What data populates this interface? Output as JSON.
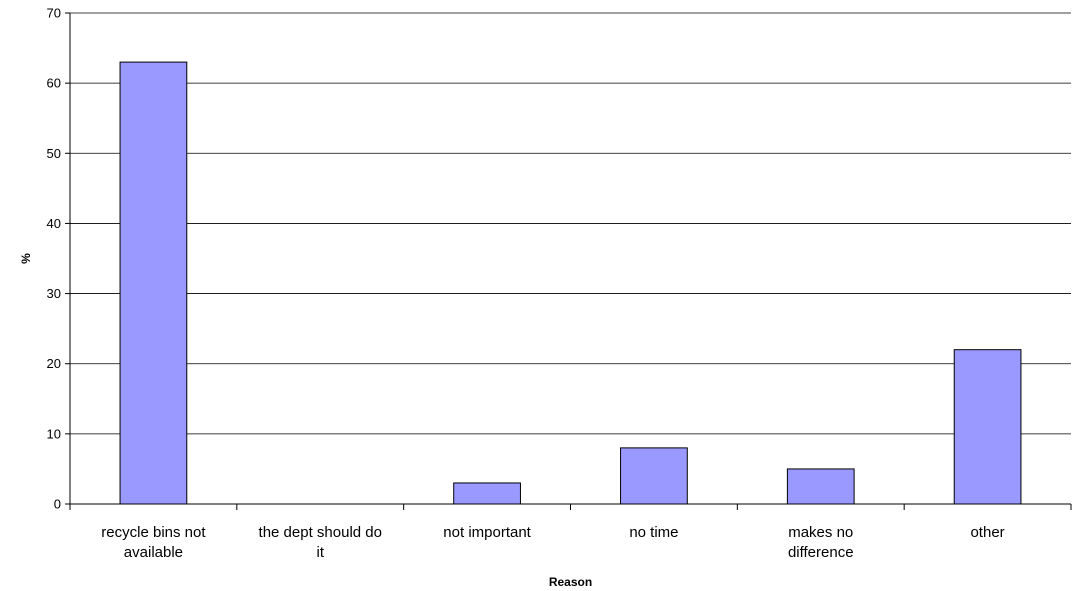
{
  "chart_data": {
    "type": "bar",
    "title": "",
    "xlabel": "Reason",
    "ylabel": "%",
    "ylim": [
      0,
      70
    ],
    "yticks": [
      0,
      10,
      20,
      30,
      40,
      50,
      60,
      70
    ],
    "grid": true,
    "legend": "none",
    "categories": [
      [
        "recycle bins not",
        "available"
      ],
      [
        "the dept should do",
        "it"
      ],
      [
        "not important"
      ],
      [
        "no time"
      ],
      [
        "makes no",
        "difference"
      ],
      [
        "other"
      ]
    ],
    "values": [
      63,
      0,
      3,
      8,
      5,
      22
    ],
    "colors": {
      "bar": "#9999ff",
      "bar_stroke": "#000000",
      "grid": "#000000"
    }
  }
}
